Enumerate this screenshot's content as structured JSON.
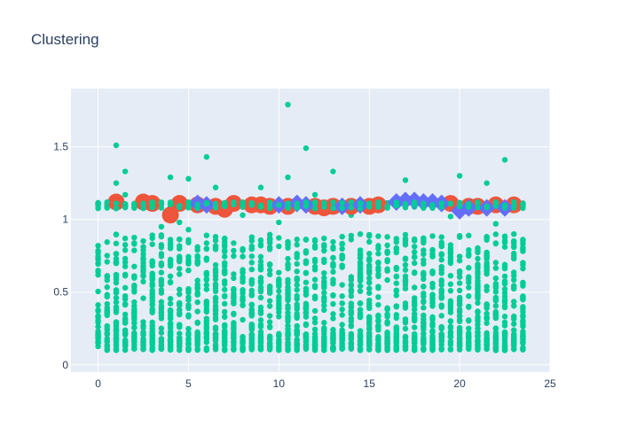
{
  "chart_data": {
    "type": "scatter",
    "title": "Clustering",
    "xlabel": "",
    "ylabel": "",
    "xlim": [
      -1.5,
      25
    ],
    "ylim": [
      -0.05,
      1.9
    ],
    "x_ticks": [
      0,
      5,
      10,
      15,
      20,
      25
    ],
    "x_tick_labels": [
      "0",
      "5",
      "10",
      "15",
      "20",
      "25"
    ],
    "y_ticks": [
      0,
      0.5,
      1,
      1.5
    ],
    "y_tick_labels": [
      "0",
      "0.5",
      "1",
      "1.5"
    ],
    "grid": true,
    "legend": "none",
    "colors": {
      "plot_bg": "#e5ecf6",
      "grid": "#ffffff",
      "green_points": "#00cc96",
      "red_points": "#ef553b",
      "blue_points": "#636efa"
    },
    "series": [
      {
        "marker": "circle",
        "color": "#00cc96",
        "size": "small",
        "x_range": [
          0,
          23.5
        ],
        "y_range": [
          0.1,
          1.1
        ],
        "columns_per_unit": 2,
        "outliers": [
          {
            "x": 1.0,
            "y": 1.51
          },
          {
            "x": 1.5,
            "y": 1.33
          },
          {
            "x": 1.0,
            "y": 1.25
          },
          {
            "x": 4.0,
            "y": 1.29
          },
          {
            "x": 5.0,
            "y": 1.28
          },
          {
            "x": 6.0,
            "y": 1.43
          },
          {
            "x": 6.5,
            "y": 1.22
          },
          {
            "x": 9.0,
            "y": 1.22
          },
          {
            "x": 10.5,
            "y": 1.79
          },
          {
            "x": 10.5,
            "y": 1.29
          },
          {
            "x": 11.5,
            "y": 1.49
          },
          {
            "x": 13.0,
            "y": 1.33
          },
          {
            "x": 17.0,
            "y": 1.27
          },
          {
            "x": 20.0,
            "y": 1.3
          },
          {
            "x": 21.5,
            "y": 1.25
          },
          {
            "x": 22.5,
            "y": 1.41
          },
          {
            "x": 1.5,
            "y": 1.17
          },
          {
            "x": 12.0,
            "y": 1.17
          },
          {
            "x": 3.5,
            "y": 0.95
          },
          {
            "x": 4.5,
            "y": 0.98
          },
          {
            "x": 5.0,
            "y": 0.93
          },
          {
            "x": 8.0,
            "y": 1.03
          },
          {
            "x": 10.0,
            "y": 0.98
          },
          {
            "x": 14.0,
            "y": 1.03
          },
          {
            "x": 19.5,
            "y": 1.02
          },
          {
            "x": 22.0,
            "y": 0.97
          }
        ]
      },
      {
        "marker": "circle",
        "color": "#ef553b",
        "size": "large",
        "points": [
          {
            "x": 1.0,
            "y": 1.12
          },
          {
            "x": 2.5,
            "y": 1.12
          },
          {
            "x": 3.0,
            "y": 1.11
          },
          {
            "x": 4.0,
            "y": 1.03
          },
          {
            "x": 4.5,
            "y": 1.11
          },
          {
            "x": 5.5,
            "y": 1.1
          },
          {
            "x": 6.5,
            "y": 1.09
          },
          {
            "x": 7.0,
            "y": 1.07
          },
          {
            "x": 7.5,
            "y": 1.11
          },
          {
            "x": 8.5,
            "y": 1.1
          },
          {
            "x": 9.0,
            "y": 1.1
          },
          {
            "x": 9.5,
            "y": 1.09
          },
          {
            "x": 10.5,
            "y": 1.09
          },
          {
            "x": 12.0,
            "y": 1.09
          },
          {
            "x": 12.5,
            "y": 1.08
          },
          {
            "x": 13.0,
            "y": 1.09
          },
          {
            "x": 14.0,
            "y": 1.09
          },
          {
            "x": 15.0,
            "y": 1.09
          },
          {
            "x": 15.5,
            "y": 1.1
          },
          {
            "x": 19.5,
            "y": 1.11
          },
          {
            "x": 20.5,
            "y": 1.09
          },
          {
            "x": 21.0,
            "y": 1.09
          },
          {
            "x": 22.0,
            "y": 1.1
          },
          {
            "x": 23.0,
            "y": 1.1
          }
        ]
      },
      {
        "marker": "diamond",
        "color": "#636efa",
        "size": "large",
        "points": [
          {
            "x": 5.5,
            "y": 1.11
          },
          {
            "x": 6.0,
            "y": 1.1
          },
          {
            "x": 10.0,
            "y": 1.1
          },
          {
            "x": 11.0,
            "y": 1.11
          },
          {
            "x": 11.5,
            "y": 1.1
          },
          {
            "x": 13.5,
            "y": 1.09
          },
          {
            "x": 14.5,
            "y": 1.1
          },
          {
            "x": 16.5,
            "y": 1.12
          },
          {
            "x": 17.0,
            "y": 1.13
          },
          {
            "x": 17.5,
            "y": 1.13
          },
          {
            "x": 18.0,
            "y": 1.12
          },
          {
            "x": 18.5,
            "y": 1.12
          },
          {
            "x": 19.0,
            "y": 1.11
          },
          {
            "x": 20.0,
            "y": 1.06
          },
          {
            "x": 20.5,
            "y": 1.08
          },
          {
            "x": 21.5,
            "y": 1.08
          },
          {
            "x": 22.5,
            "y": 1.08
          }
        ]
      }
    ]
  }
}
